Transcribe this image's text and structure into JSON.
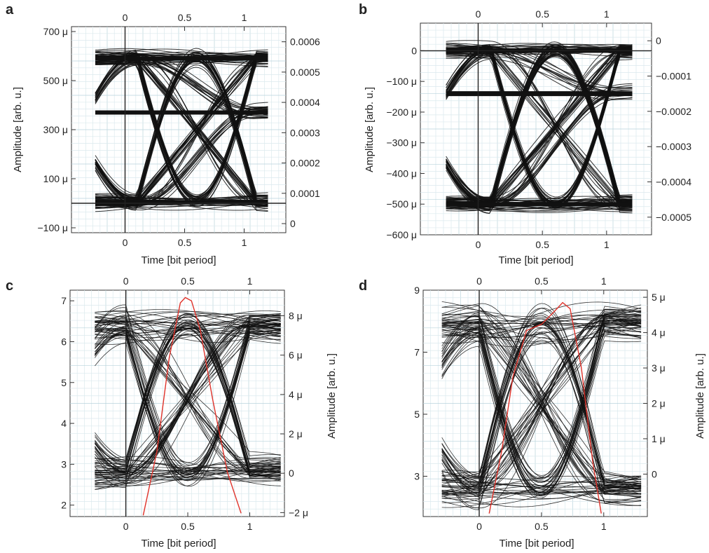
{
  "chart_data": [
    {
      "panel": "a",
      "type": "line",
      "description": "eye diagram",
      "xlabel": "Time [bit period]",
      "ylabel_left": "Amplitude [arb. u.]",
      "ylabel_right": "",
      "xlim": [
        -0.45,
        1.35
      ],
      "x_ticks": [
        0,
        0.5,
        1
      ],
      "x_ticklabels": [
        "0",
        "0.5",
        "1"
      ],
      "y_left_lim": [
        -0.00012,
        0.00072
      ],
      "y_left_ticks": [
        -0.0001,
        0.0001,
        0.0003,
        0.0005,
        0.0007
      ],
      "y_left_ticklabels": [
        "−100 μ",
        "100 μ",
        "300 μ",
        "500 μ",
        "700 μ"
      ],
      "y_right_ticks": [
        0,
        0.0001,
        0.0002,
        0.0003,
        0.0004,
        0.0005,
        0.0006
      ],
      "y_right_ticklabels": [
        "0",
        "0.0001",
        "0.0002",
        "0.0003",
        "0.0004",
        "0.0005",
        "0.0006"
      ],
      "trace_x_range": [
        -0.25,
        1.2
      ],
      "levels": [
        5e-06,
        0.00037,
        0.00059
      ],
      "crossing_points": [
        0.1,
        1.1
      ],
      "eye_peak": 0.00061,
      "reference_line_y": 0
    },
    {
      "panel": "b",
      "type": "line",
      "description": "eye diagram",
      "xlabel": "Time [bit period]",
      "ylabel_left": "Amplitude [arb. u.]",
      "ylabel_right": "",
      "xlim": [
        -0.45,
        1.35
      ],
      "x_ticks": [
        0,
        0.5,
        1
      ],
      "x_ticklabels": [
        "0",
        "0.5",
        "1"
      ],
      "y_left_lim": [
        -0.0006,
        9e-05
      ],
      "y_left_ticks": [
        0,
        -0.0001,
        -0.0002,
        -0.0003,
        -0.0004,
        -0.0005,
        -0.0006
      ],
      "y_left_ticklabels": [
        "0",
        "−100 μ",
        "−200 μ",
        "−300 μ",
        "−400 μ",
        "−500 μ",
        "−600 μ"
      ],
      "y_right_ticks": [
        0,
        -0.0001,
        -0.0002,
        -0.0003,
        -0.0004,
        -0.0005
      ],
      "y_right_ticklabels": [
        "0",
        "−0.0001",
        "−0.0002",
        "−0.0003",
        "−0.0004",
        "−0.0005"
      ],
      "trace_x_range": [
        -0.25,
        1.2
      ],
      "levels": [
        0,
        -0.00014,
        -0.0005
      ],
      "crossing_points": [
        0.1,
        1.1
      ],
      "reference_line_y": 0
    },
    {
      "panel": "c",
      "type": "line",
      "description": "eye diagram with red overlay curve",
      "xlabel": "Time [bit period]",
      "ylabel_left": "",
      "ylabel_right": "Amplitude [arb. u.]",
      "xlim": [
        -0.45,
        1.28
      ],
      "x_ticks": [
        0,
        0.5,
        1
      ],
      "x_ticklabels": [
        "0",
        "0.5",
        "1"
      ],
      "y_left_lim": [
        1.72,
        7.26
      ],
      "y_left_ticks": [
        2,
        3,
        4,
        5,
        6,
        7
      ],
      "y_left_ticklabels": [
        "2",
        "3",
        "4",
        "5",
        "6",
        "7"
      ],
      "y_right_ticks": [
        -2e-06,
        0,
        2e-06,
        4e-06,
        6e-06,
        8e-06
      ],
      "y_right_ticklabels": [
        "−2 μ",
        "0",
        "2 μ",
        "4 μ",
        "6 μ",
        "8 μ"
      ],
      "trace_x_range": [
        -0.25,
        1.25
      ],
      "levels": [
        2.8,
        6.4
      ],
      "crossing_points": [
        0,
        1
      ],
      "red_curve": {
        "x": [
          0.14,
          0.25,
          0.35,
          0.44,
          0.48,
          0.53,
          0.6,
          0.7,
          0.82,
          0.93
        ],
        "y": [
          1.75,
          3.3,
          5.6,
          6.95,
          7.08,
          7.0,
          6.3,
          4.6,
          2.8,
          1.8
        ]
      }
    },
    {
      "panel": "d",
      "type": "line",
      "description": "eye diagram with red overlay curve",
      "xlabel": "Time [bit period]",
      "ylabel_left": "",
      "ylabel_right": "Amplitude [arb. u.]",
      "xlim": [
        -0.45,
        1.35
      ],
      "x_ticks": [
        0,
        0.5,
        1
      ],
      "x_ticklabels": [
        "0",
        "0.5",
        "1"
      ],
      "y_left_lim": [
        1.7,
        9.0
      ],
      "y_left_ticks": [
        3,
        5,
        7,
        9
      ],
      "y_left_ticklabels": [
        "3",
        "5",
        "7",
        "9"
      ],
      "y_right_ticks": [
        0,
        1e-06,
        2e-06,
        3e-06,
        4e-06,
        5e-06
      ],
      "y_right_ticklabels": [
        "0",
        "1 μ",
        "2 μ",
        "3 μ",
        "4 μ",
        "5 μ"
      ],
      "trace_x_range": [
        -0.3,
        1.3
      ],
      "levels": [
        2.6,
        7.9
      ],
      "crossing_points": [
        0,
        1
      ],
      "red_curve": {
        "x": [
          0.08,
          0.18,
          0.27,
          0.38,
          0.5,
          0.6,
          0.67,
          0.73,
          0.82,
          0.91,
          0.98
        ],
        "y": [
          1.8,
          3.8,
          6.2,
          7.7,
          7.9,
          8.3,
          8.6,
          8.4,
          6.5,
          3.5,
          1.8
        ]
      }
    }
  ]
}
